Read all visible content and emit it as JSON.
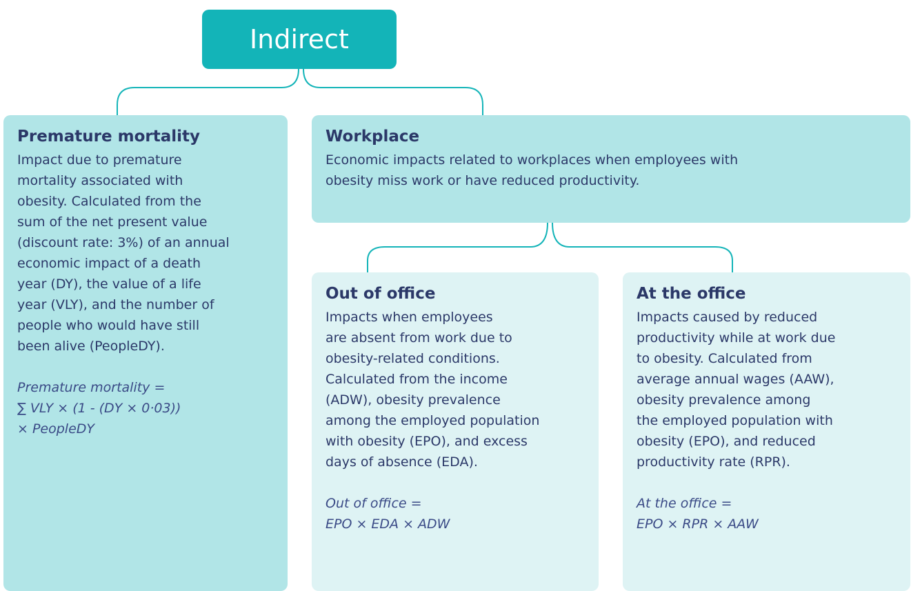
{
  "root": {
    "label": "Indirect"
  },
  "nodes": [
    {
      "title": "Premature mortality",
      "description": [
        "Impact due to premature",
        "mortality associated with",
        "obesity. Calculated from the",
        "sum of the net present value",
        "(discount rate: 3%) of an annual",
        "economic impact of a death",
        "year (DY), the value of a life",
        "year (VLY), and the number of",
        "people who would have still",
        "been alive (PeopleDY)."
      ],
      "formula": [
        "Premature mortality =",
        "∑ VLY × (1 - (DY × 0·03))",
        "× PeopleDY"
      ]
    },
    {
      "title": "Workplace",
      "description": [
        "Economic impacts related to workplaces when employees with",
        "obesity miss work or have reduced productivity."
      ],
      "formula": []
    },
    {
      "title": "Out of office",
      "description": [
        "Impacts when employees",
        "are absent from work due to",
        "obesity-related conditions.",
        "Calculated from the income",
        "(ADW), obesity prevalence",
        "among the employed population",
        "with obesity (EPO), and excess",
        "days of absence (EDA)."
      ],
      "formula": [
        "Out of office =",
        "EPO × EDA × ADW"
      ]
    },
    {
      "title": "At the office",
      "description": [
        "Impacts caused by reduced",
        "productivity while at work due",
        "to obesity. Calculated from",
        "average annual wages (AAW),",
        "obesity prevalence among",
        "the employed population with",
        "obesity (EPO), and reduced",
        "productivity rate (RPR)."
      ],
      "formula": [
        "At the office =",
        "EPO × RPR × AAW"
      ]
    }
  ]
}
